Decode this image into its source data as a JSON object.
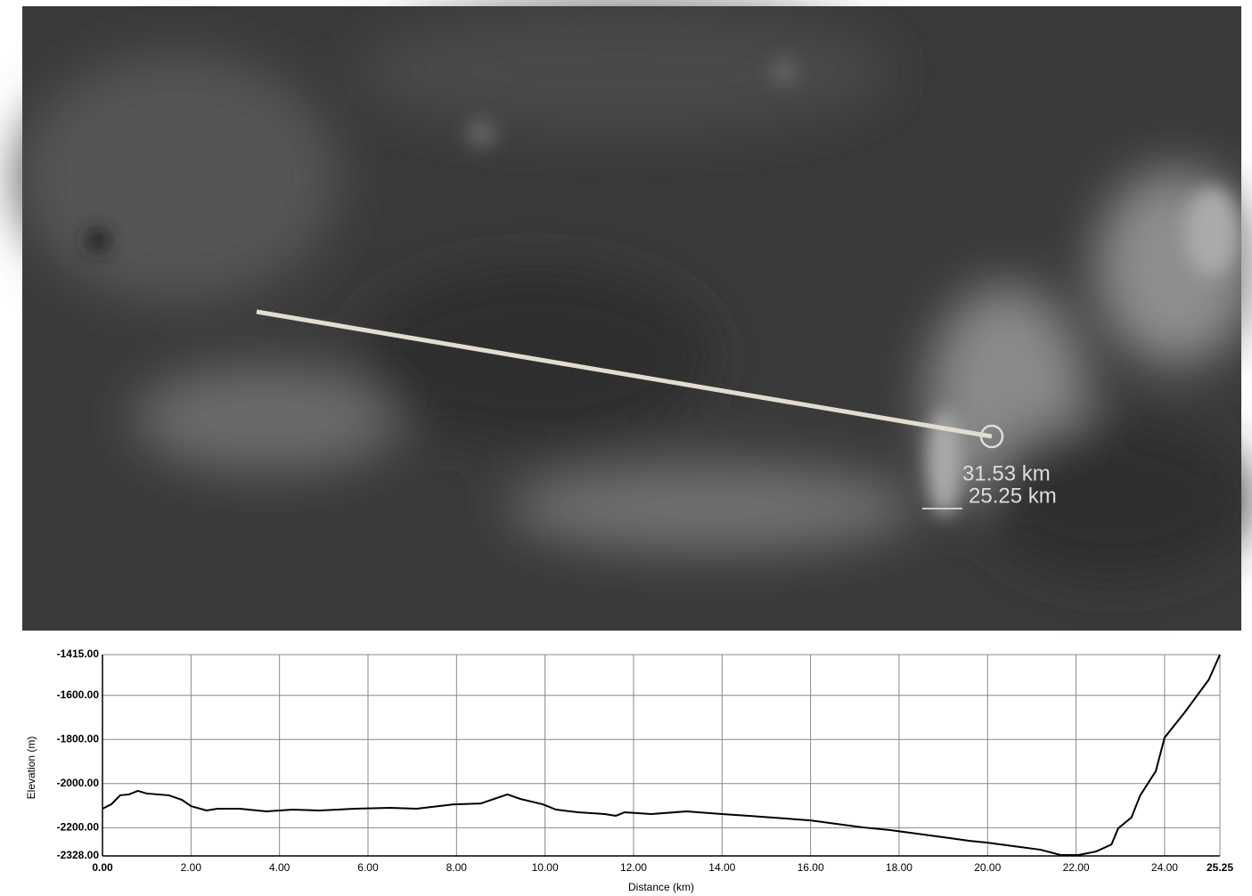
{
  "map": {
    "measure_labels": [
      "31.53 km",
      "25.25 km"
    ]
  },
  "chart_data": {
    "type": "line",
    "xlabel": "Distance (km)",
    "ylabel": "Elevation (m)",
    "x": [
      0,
      0.2,
      0.4,
      0.6,
      0.8,
      1.0,
      1.5,
      1.8,
      2.0,
      2.35,
      2.6,
      3.1,
      3.7,
      4.3,
      4.9,
      5.7,
      6.5,
      7.1,
      7.95,
      8.55,
      9.15,
      9.45,
      9.95,
      10.25,
      10.75,
      11.35,
      11.6,
      11.8,
      12.4,
      13.2,
      14.0,
      14.6,
      15.4,
      16.0,
      16.6,
      17.2,
      17.8,
      18.4,
      19.0,
      19.6,
      20.0,
      20.6,
      21.2,
      21.65,
      22.05,
      22.45,
      22.8,
      22.95,
      23.25,
      23.45,
      23.8,
      24.0,
      24.45,
      25.0,
      25.25
    ],
    "series": [
      {
        "color": "#000000",
        "values": [
          -2114,
          -2094,
          -2053,
          -2049,
          -2033,
          -2045,
          -2053,
          -2074,
          -2102,
          -2122,
          -2114,
          -2114,
          -2126,
          -2118,
          -2122,
          -2114,
          -2110,
          -2114,
          -2094,
          -2090,
          -2049,
          -2070,
          -2094,
          -2118,
          -2130,
          -2138,
          -2146,
          -2130,
          -2138,
          -2126,
          -2138,
          -2146,
          -2158,
          -2167,
          -2183,
          -2199,
          -2211,
          -2227,
          -2243,
          -2260,
          -2268,
          -2284,
          -2300,
          -2324,
          -2324,
          -2308,
          -2276,
          -2203,
          -2154,
          -2053,
          -1944,
          -1791,
          -1678,
          -1528,
          -1415
        ]
      }
    ],
    "xlim": [
      0,
      25.25
    ],
    "xticks": [
      {
        "value": 0,
        "label": "0.00"
      },
      {
        "value": 2,
        "label": "2.00"
      },
      {
        "value": 4,
        "label": "4.00"
      },
      {
        "value": 6,
        "label": "6.00"
      },
      {
        "value": 8,
        "label": "8.00"
      },
      {
        "value": 10,
        "label": "10.00"
      },
      {
        "value": 12,
        "label": "12.00"
      },
      {
        "value": 14,
        "label": "14.00"
      },
      {
        "value": 16,
        "label": "16.00"
      },
      {
        "value": 18,
        "label": "18.00"
      },
      {
        "value": 20,
        "label": "20.00"
      },
      {
        "value": 22,
        "label": "22.00"
      },
      {
        "value": 24,
        "label": "24.00"
      },
      {
        "value": 25.25,
        "label": "25.25"
      }
    ],
    "ylim": [
      -2328,
      -1415
    ],
    "yticks": [
      {
        "value": -1415,
        "label": "-1415.00"
      },
      {
        "value": -1600,
        "label": "-1600.00"
      },
      {
        "value": -1800,
        "label": "-1800.00"
      },
      {
        "value": -2000,
        "label": "-2000.00"
      },
      {
        "value": -2200,
        "label": "-2200.00"
      },
      {
        "value": -2328,
        "label": "-2328.00"
      }
    ],
    "grid": true
  }
}
